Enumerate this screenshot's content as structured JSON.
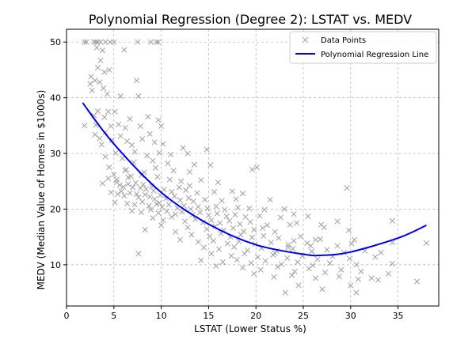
{
  "chart_data": {
    "type": "scatter",
    "title": "Polynomial Regression (Degree 2): LSTAT vs. MEDV",
    "xlabel": "LSTAT (Lower Status %)",
    "ylabel": "MEDV (Median Value of Homes in $1000s)",
    "xlim": [
      0,
      39.3
    ],
    "ylim": [
      2.6,
      52.3
    ],
    "xticks": [
      0,
      5,
      10,
      15,
      20,
      25,
      30,
      35
    ],
    "yticks": [
      10,
      20,
      30,
      40,
      50
    ],
    "grid": true,
    "legend_position": "top-right",
    "legend": [
      "Data Points",
      "Polynomial Regression Line"
    ],
    "colors": {
      "points": "#9a9a9a",
      "line": "#0000ee"
    },
    "series": [
      {
        "name": "Data Points",
        "type": "scatter",
        "marker": "x",
        "points": [
          [
            1.9,
            50
          ],
          [
            2.1,
            50
          ],
          [
            2.9,
            50
          ],
          [
            3.1,
            50
          ],
          [
            3.3,
            50
          ],
          [
            3.6,
            50
          ],
          [
            4.1,
            50
          ],
          [
            4.6,
            50
          ],
          [
            5.0,
            50
          ],
          [
            7.5,
            50
          ],
          [
            8.9,
            50
          ],
          [
            9.5,
            50
          ],
          [
            9.7,
            50
          ],
          [
            3.2,
            49
          ],
          [
            3.8,
            48.5
          ],
          [
            6.1,
            48.6
          ],
          [
            3.6,
            46.7
          ],
          [
            3.3,
            45.4
          ],
          [
            4.5,
            45
          ],
          [
            2.6,
            43.8
          ],
          [
            3.0,
            43.1
          ],
          [
            4.0,
            44.6
          ],
          [
            3.5,
            42.8
          ],
          [
            7.4,
            43.1
          ],
          [
            2.5,
            42.5
          ],
          [
            3.9,
            41.7
          ],
          [
            2.7,
            41.3
          ],
          [
            4.3,
            40.7
          ],
          [
            7.6,
            40.3
          ],
          [
            3.3,
            37.6
          ],
          [
            4.4,
            37.5
          ],
          [
            5.1,
            37.5
          ],
          [
            4.0,
            36.5
          ],
          [
            6.7,
            36.2
          ],
          [
            8.6,
            36.6
          ],
          [
            9.7,
            36.0
          ],
          [
            10.0,
            34.9
          ],
          [
            2.9,
            36.8
          ],
          [
            5.5,
            35.2
          ],
          [
            7.8,
            34.9
          ],
          [
            8.8,
            33.5
          ],
          [
            4.7,
            34.9
          ],
          [
            6.2,
            34.6
          ],
          [
            5.7,
            33.1
          ],
          [
            4.8,
            32.4
          ],
          [
            6.4,
            32.2
          ],
          [
            8.0,
            32.6
          ],
          [
            9.3,
            32.0
          ],
          [
            10.2,
            31.7
          ],
          [
            12.3,
            31.0
          ],
          [
            14.8,
            30.7
          ],
          [
            3.0,
            33.4
          ],
          [
            3.7,
            31.6
          ],
          [
            6.9,
            31.5
          ],
          [
            5.2,
            30.1
          ],
          [
            7.2,
            30.3
          ],
          [
            8.5,
            29.6
          ],
          [
            9.8,
            30.1
          ],
          [
            11.0,
            29.8
          ],
          [
            12.8,
            30.0
          ],
          [
            4.1,
            29.4
          ],
          [
            5.9,
            29.1
          ],
          [
            7.1,
            28.4
          ],
          [
            9.1,
            28.7
          ],
          [
            10.7,
            28.2
          ],
          [
            13.5,
            28.0
          ],
          [
            15.2,
            27.9
          ],
          [
            4.5,
            27.5
          ],
          [
            6.3,
            27.1
          ],
          [
            8.2,
            26.6
          ],
          [
            9.4,
            27.4
          ],
          [
            11.3,
            26.9
          ],
          [
            13.0,
            26.7
          ],
          [
            19.6,
            27.1
          ],
          [
            20.1,
            27.5
          ],
          [
            5.0,
            26.2
          ],
          [
            6.8,
            25.9
          ],
          [
            7.9,
            26.1
          ],
          [
            9.6,
            25.8
          ],
          [
            10.9,
            25.3
          ],
          [
            12.1,
            25.0
          ],
          [
            14.2,
            25.2
          ],
          [
            16.0,
            24.8
          ],
          [
            3.8,
            24.6
          ],
          [
            5.3,
            24.8
          ],
          [
            5.6,
            24.3
          ],
          [
            6.0,
            24.0
          ],
          [
            6.5,
            24.5
          ],
          [
            7.0,
            23.9
          ],
          [
            7.3,
            24.7
          ],
          [
            7.8,
            23.8
          ],
          [
            8.1,
            24.4
          ],
          [
            8.4,
            23.6
          ],
          [
            9.0,
            24.1
          ],
          [
            9.2,
            23.3
          ],
          [
            10.3,
            23.5
          ],
          [
            11.1,
            23.1
          ],
          [
            12.6,
            23.4
          ],
          [
            13.8,
            22.9
          ],
          [
            15.6,
            23.1
          ],
          [
            17.5,
            23.2
          ],
          [
            18.6,
            22.8
          ],
          [
            4.7,
            23.0
          ],
          [
            5.4,
            22.7
          ],
          [
            6.1,
            22.4
          ],
          [
            6.7,
            22.9
          ],
          [
            7.6,
            22.1
          ],
          [
            8.3,
            22.6
          ],
          [
            8.8,
            22.2
          ],
          [
            9.3,
            21.8
          ],
          [
            9.9,
            22.5
          ],
          [
            10.5,
            21.9
          ],
          [
            11.4,
            22.3
          ],
          [
            12.0,
            21.6
          ],
          [
            12.9,
            22.0
          ],
          [
            13.4,
            21.4
          ],
          [
            14.6,
            21.7
          ],
          [
            16.4,
            21.5
          ],
          [
            17.9,
            21.8
          ],
          [
            21.5,
            21.7
          ],
          [
            5.1,
            21.2
          ],
          [
            6.4,
            21.0
          ],
          [
            7.2,
            20.8
          ],
          [
            8.0,
            21.3
          ],
          [
            8.7,
            20.6
          ],
          [
            9.5,
            20.9
          ],
          [
            10.1,
            20.4
          ],
          [
            10.8,
            20.8
          ],
          [
            11.7,
            20.2
          ],
          [
            12.4,
            20.6
          ],
          [
            13.1,
            20.0
          ],
          [
            13.9,
            20.4
          ],
          [
            14.9,
            20.1
          ],
          [
            15.8,
            20.5
          ],
          [
            16.7,
            19.9
          ],
          [
            18.1,
            20.3
          ],
          [
            19.3,
            20.1
          ],
          [
            20.9,
            19.9
          ],
          [
            23.0,
            20.0
          ],
          [
            6.9,
            19.7
          ],
          [
            7.9,
            19.4
          ],
          [
            8.9,
            19.9
          ],
          [
            9.7,
            19.3
          ],
          [
            10.6,
            19.6
          ],
          [
            11.5,
            19.1
          ],
          [
            12.2,
            19.5
          ],
          [
            13.3,
            19.0
          ],
          [
            14.1,
            19.4
          ],
          [
            15.0,
            18.9
          ],
          [
            15.9,
            19.2
          ],
          [
            16.9,
            18.7
          ],
          [
            17.8,
            19.0
          ],
          [
            18.9,
            18.6
          ],
          [
            20.4,
            18.8
          ],
          [
            22.6,
            18.5
          ],
          [
            24.0,
            19.1
          ],
          [
            9.1,
            18.4
          ],
          [
            10.2,
            18.0
          ],
          [
            11.1,
            18.6
          ],
          [
            12.5,
            17.8
          ],
          [
            13.6,
            18.2
          ],
          [
            14.4,
            17.6
          ],
          [
            15.3,
            18.0
          ],
          [
            16.2,
            17.5
          ],
          [
            17.2,
            17.9
          ],
          [
            18.3,
            17.3
          ],
          [
            19.4,
            17.7
          ],
          [
            21.2,
            17.1
          ],
          [
            23.6,
            17.2
          ],
          [
            10.0,
            17.1
          ],
          [
            12.8,
            16.7
          ],
          [
            14.8,
            16.4
          ],
          [
            15.7,
            16.9
          ],
          [
            16.6,
            16.2
          ],
          [
            17.6,
            16.6
          ],
          [
            18.7,
            16.0
          ],
          [
            19.8,
            16.3
          ],
          [
            22.0,
            15.9
          ],
          [
            8.3,
            16.3
          ],
          [
            11.5,
            15.9
          ],
          [
            13.2,
            15.4
          ],
          [
            15.1,
            15.1
          ],
          [
            16.3,
            15.6
          ],
          [
            17.3,
            15.0
          ],
          [
            18.4,
            15.4
          ],
          [
            19.6,
            14.9
          ],
          [
            20.8,
            15.2
          ],
          [
            22.4,
            14.8
          ],
          [
            24.7,
            15.1
          ],
          [
            26.8,
            14.6
          ],
          [
            12.0,
            14.5
          ],
          [
            13.9,
            14.1
          ],
          [
            15.5,
            14.3
          ],
          [
            17.0,
            13.8
          ],
          [
            18.2,
            14.2
          ],
          [
            19.9,
            13.7
          ],
          [
            21.6,
            14.0
          ],
          [
            23.4,
            13.6
          ],
          [
            25.4,
            13.9
          ],
          [
            28.6,
            13.4
          ],
          [
            30.1,
            13.8
          ],
          [
            14.5,
            13.1
          ],
          [
            16.1,
            12.8
          ],
          [
            17.7,
            13.2
          ],
          [
            19.1,
            12.6
          ],
          [
            20.6,
            13.0
          ],
          [
            22.2,
            12.5
          ],
          [
            23.9,
            12.9
          ],
          [
            25.9,
            12.4
          ],
          [
            27.5,
            12.7
          ],
          [
            29.3,
            12.2
          ],
          [
            31.5,
            12.5
          ],
          [
            15.3,
            12.0
          ],
          [
            17.4,
            11.6
          ],
          [
            18.8,
            12.0
          ],
          [
            20.2,
            11.4
          ],
          [
            21.8,
            11.8
          ],
          [
            23.3,
            11.2
          ],
          [
            24.9,
            11.6
          ],
          [
            26.5,
            11.0
          ],
          [
            28.1,
            11.5
          ],
          [
            29.9,
            11.1
          ],
          [
            32.6,
            11.4
          ],
          [
            14.2,
            10.8
          ],
          [
            16.5,
            10.5
          ],
          [
            18.0,
            10.9
          ],
          [
            19.5,
            10.3
          ],
          [
            21.0,
            10.7
          ],
          [
            22.7,
            10.1
          ],
          [
            24.4,
            10.5
          ],
          [
            26.0,
            9.9
          ],
          [
            27.8,
            10.3
          ],
          [
            30.6,
            10.0
          ],
          [
            34.4,
            10.2
          ],
          [
            15.8,
            9.8
          ],
          [
            18.6,
            9.5
          ],
          [
            20.5,
            9.1
          ],
          [
            22.3,
            9.6
          ],
          [
            24.1,
            8.8
          ],
          [
            25.6,
            9.3
          ],
          [
            27.3,
            8.6
          ],
          [
            29.0,
            9.1
          ],
          [
            31.1,
            8.8
          ],
          [
            34.0,
            8.4
          ],
          [
            19.8,
            8.4
          ],
          [
            21.9,
            7.8
          ],
          [
            23.8,
            8.1
          ],
          [
            26.3,
            7.6
          ],
          [
            28.8,
            7.9
          ],
          [
            30.8,
            7.4
          ],
          [
            32.2,
            7.6
          ],
          [
            37.0,
            7.0
          ],
          [
            24.5,
            6.3
          ],
          [
            27.0,
            5.6
          ],
          [
            30.0,
            6.3
          ],
          [
            23.1,
            5.0
          ],
          [
            30.6,
            5.0
          ],
          [
            7.6,
            12.0
          ],
          [
            22.0,
            12.1
          ],
          [
            23.4,
            13.1
          ],
          [
            25.8,
            13.4
          ],
          [
            24.0,
            14.3
          ],
          [
            26.3,
            14.5
          ],
          [
            34.4,
            14.0
          ],
          [
            20.7,
            16.6
          ],
          [
            27.2,
            16.7
          ],
          [
            26.9,
            17.2
          ],
          [
            24.3,
            17.5
          ],
          [
            28.6,
            17.8
          ],
          [
            29.8,
            16.2
          ],
          [
            34.4,
            17.9
          ],
          [
            25.5,
            18.7
          ],
          [
            29.6,
            23.8
          ],
          [
            38.0,
            13.9
          ],
          [
            30.4,
            14.5
          ],
          [
            32.9,
            7.3
          ],
          [
            33.2,
            12.2
          ],
          [
            5.3,
            25.3
          ],
          [
            6.5,
            25.7
          ],
          [
            5.8,
            23.2
          ],
          [
            7.4,
            22.7
          ],
          [
            6.2,
            26.9
          ],
          [
            4.4,
            25.5
          ],
          [
            9.8,
            21.1
          ],
          [
            11.9,
            23.9
          ],
          [
            13.0,
            24.2
          ],
          [
            3.5,
            32.7
          ],
          [
            4.1,
            33.8
          ],
          [
            3.1,
            35.1
          ],
          [
            5.7,
            40.3
          ],
          [
            1.9,
            35.0
          ]
        ]
      },
      {
        "name": "Polynomial Regression Line",
        "type": "line",
        "model": "degree-2 polynomial",
        "points": [
          [
            1.7,
            39.1
          ],
          [
            5,
            31.7
          ],
          [
            10,
            23.0
          ],
          [
            15,
            17.3
          ],
          [
            20,
            13.6
          ],
          [
            25,
            11.9
          ],
          [
            27,
            11.7
          ],
          [
            30,
            12.3
          ],
          [
            35,
            14.8
          ],
          [
            38,
            17.1
          ]
        ]
      }
    ]
  }
}
